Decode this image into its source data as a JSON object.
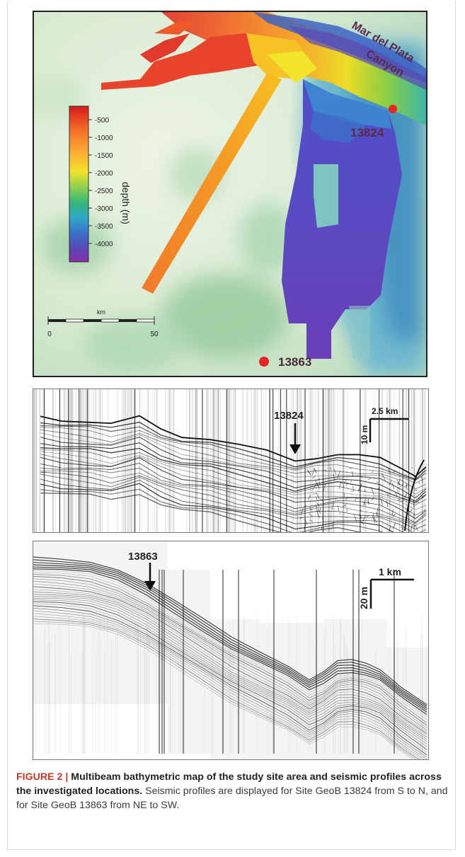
{
  "map": {
    "legend_ticks": [
      "-500",
      "-1000",
      "-1500",
      "-2000",
      "-2500",
      "-3000",
      "-3500",
      "-4000"
    ],
    "legend_title": "depth (m)",
    "scale_unit": "km",
    "scale_start": "0",
    "scale_end": "50",
    "canyon_label_line1": "Mar del Plata",
    "canyon_label_line2": "Canyon",
    "site_a": "13824",
    "site_b": "13863",
    "colors": {
      "site_marker": "#e52520",
      "label": "#5a2a4a"
    }
  },
  "seismic1": {
    "site_label": "13824",
    "scale_h": "2.5 km",
    "scale_v": "10 m"
  },
  "seismic2": {
    "site_label": "13863",
    "scale_h": "1 km",
    "scale_v": "20 m"
  },
  "caption": {
    "figure_label": "FIGURE 2 |",
    "title": "Multibeam bathymetric map of the study site area and seismic profiles across the investigated locations.",
    "body": "Seismic profiles are displayed for Site GeoB 13824 from S to N, and for Site GeoB 13863 from NE to SW."
  }
}
